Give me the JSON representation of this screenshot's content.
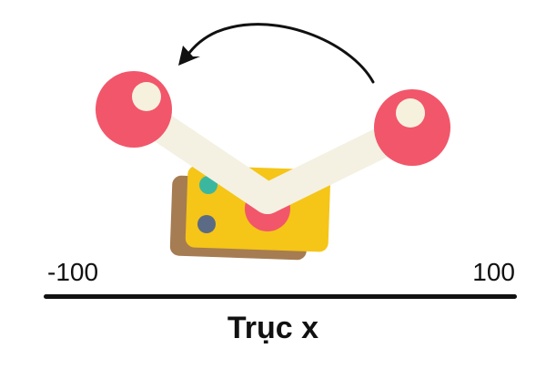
{
  "axis": {
    "min_label": "-100",
    "max_label": "100",
    "title": "Trục x"
  },
  "icons": {
    "rotation_arrow": "curved-arrow-icon",
    "left_atom": "ball-icon",
    "right_atom": "ball-icon"
  },
  "colors": {
    "ball": "#f2566a",
    "ball_highlight": "#f6f1dd",
    "bond": "#f4f1e2",
    "card_front": "#f5c518",
    "card_back": "#a67c52",
    "dot_teal": "#3bb7a0",
    "dot_slate": "#5b6b85",
    "axis": "#111111"
  }
}
